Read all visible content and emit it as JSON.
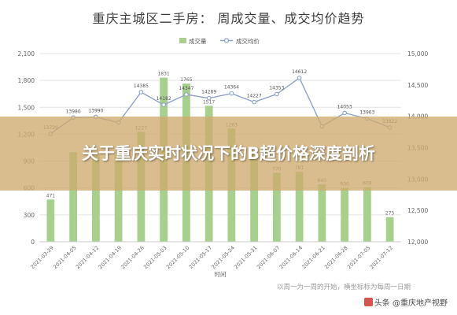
{
  "chart_data": {
    "type": "bar+line",
    "title": "重庆主城区二手房：  周成交量、成交均价趋势",
    "xlabel": "时间",
    "legend": {
      "placement": "top-center",
      "items": [
        "成交量",
        "成交均价"
      ]
    },
    "categories": [
      "2021-03-29",
      "2021-04-05",
      "2021-04-12",
      "2021-04-19",
      "2021-04-26",
      "2021-05-03",
      "2021-05-10",
      "2021-05-17",
      "2021-05-24",
      "2021-05-31",
      "2021-06-07",
      "2021-06-14",
      "2021-06-21",
      "2021-06-28",
      "2021-07-05",
      "2021-07-12"
    ],
    "series": [
      {
        "name": "成交量",
        "type": "bar",
        "axis": "left",
        "color": "#a6d08b",
        "values": [
          471,
          1000,
          960,
          960,
          1227,
          1831,
          1765,
          1517,
          1263,
          1000,
          770,
          781,
          640,
          600,
          609,
          275
        ],
        "labels": [
          "471",
          "",
          "",
          "",
          "1227",
          "1831",
          "1765",
          "1517",
          "1263",
          "",
          "770",
          "781",
          "640",
          "600",
          "609",
          "275"
        ]
      },
      {
        "name": "成交均价",
        "type": "line",
        "axis": "right",
        "color": "#8fa3c9",
        "values": [
          13720,
          13980,
          13990,
          13900,
          14385,
          14182,
          14347,
          14289,
          14364,
          14227,
          14353,
          14612,
          13840,
          14053,
          13963,
          13822
        ],
        "labels": [
          "13720",
          "13980",
          "13990",
          "",
          "14385",
          "14182",
          "14347",
          "14289",
          "14364",
          "14227",
          "14353",
          "14612",
          "",
          "14053",
          "13963",
          "13822"
        ]
      }
    ],
    "y_left": {
      "min": 0,
      "max": 2100,
      "ticks": [
        "0",
        "300",
        "600",
        "900",
        "1,200",
        "1,500",
        "1,800",
        "2,100"
      ]
    },
    "y_right": {
      "min": 12000,
      "max": 15000,
      "ticks": [
        "12,000",
        "12,500",
        "13,000",
        "13,500",
        "14,000",
        "14,500",
        "15,000"
      ]
    },
    "grid": true
  },
  "banner_title": "关于重庆实时状况下的B超价格深度剖析",
  "note": "以周一为一周的开始，横坐标标为每周一日期",
  "watermark": "头条 @重庆地产视野"
}
